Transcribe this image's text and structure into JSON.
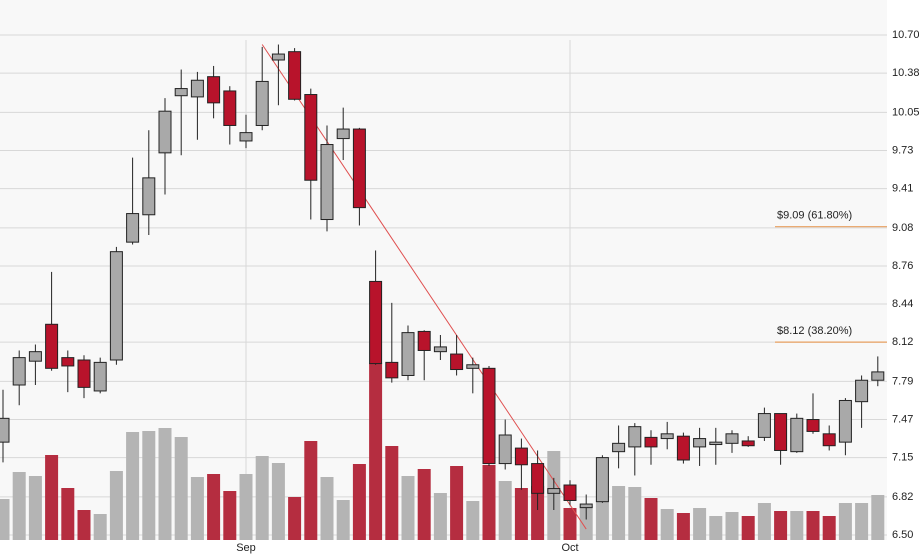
{
  "chart_data": {
    "type": "candlestick",
    "categories": [
      null,
      null,
      null,
      null,
      null,
      null,
      null,
      null,
      null,
      null,
      null,
      null,
      null,
      null,
      null,
      "Sep",
      null,
      null,
      null,
      null,
      null,
      null,
      null,
      null,
      null,
      null,
      null,
      null,
      null,
      null,
      null,
      null,
      null,
      null,
      null,
      "Oct",
      null,
      null,
      null,
      null,
      null,
      null,
      null,
      null,
      null,
      null,
      null,
      null,
      null,
      null,
      null,
      null,
      null,
      null,
      null
    ],
    "open": [
      7.28,
      7.76,
      7.96,
      8.27,
      7.99,
      7.97,
      7.71,
      7.97,
      8.96,
      9.19,
      9.71,
      10.19,
      10.18,
      10.35,
      10.23,
      9.81,
      9.94,
      10.49,
      10.56,
      10.2,
      9.15,
      9.83,
      9.91,
      8.63,
      7.95,
      7.84,
      8.21,
      8.04,
      8.02,
      7.9,
      7.9,
      7.1,
      7.23,
      7.1,
      6.85,
      6.92,
      6.73,
      6.78,
      7.2,
      7.24,
      7.32,
      7.31,
      7.33,
      7.24,
      7.26,
      7.27,
      7.29,
      7.32,
      7.52,
      7.2,
      7.47,
      7.35,
      7.28,
      7.62,
      7.8
    ],
    "high": [
      7.72,
      8.05,
      8.1,
      8.71,
      8.05,
      8.01,
      7.99,
      8.92,
      9.67,
      9.9,
      10.17,
      10.41,
      10.39,
      10.44,
      10.27,
      10.03,
      10.6,
      10.62,
      10.59,
      10.25,
      9.94,
      10.09,
      9.92,
      8.89,
      8.45,
      8.26,
      8.22,
      8.18,
      8.18,
      7.99,
      7.92,
      7.47,
      7.31,
      7.21,
      6.98,
      6.96,
      6.84,
      7.17,
      7.42,
      7.44,
      7.38,
      7.45,
      7.36,
      7.4,
      7.4,
      7.38,
      7.33,
      7.57,
      7.52,
      7.52,
      7.69,
      7.42,
      7.65,
      7.84,
      8.0
    ],
    "low": [
      7.11,
      7.59,
      7.76,
      7.88,
      7.7,
      7.65,
      7.69,
      7.93,
      8.94,
      9.02,
      9.36,
      9.69,
      9.82,
      10.0,
      9.78,
      9.75,
      9.9,
      10.11,
      10.15,
      9.15,
      9.05,
      9.65,
      9.1,
      7.93,
      7.78,
      7.8,
      7.8,
      7.97,
      7.84,
      7.69,
      7.08,
      7.05,
      6.88,
      6.71,
      6.71,
      6.75,
      6.63,
      6.77,
      7.06,
      7.0,
      7.09,
      7.22,
      7.1,
      7.08,
      7.09,
      7.19,
      7.24,
      7.29,
      7.09,
      7.19,
      7.35,
      7.21,
      7.17,
      7.4,
      7.75
    ],
    "close": [
      7.48,
      7.99,
      8.04,
      7.9,
      7.92,
      7.74,
      7.95,
      8.88,
      9.2,
      9.5,
      10.06,
      10.25,
      10.32,
      10.13,
      9.94,
      9.88,
      10.31,
      10.54,
      10.16,
      9.48,
      9.78,
      9.91,
      9.25,
      7.94,
      7.82,
      8.2,
      8.05,
      8.08,
      7.89,
      7.93,
      7.1,
      7.34,
      7.09,
      6.85,
      6.89,
      6.79,
      6.76,
      7.15,
      7.27,
      7.41,
      7.24,
      7.35,
      7.13,
      7.31,
      7.28,
      7.35,
      7.25,
      7.52,
      7.21,
      7.48,
      7.37,
      7.25,
      7.63,
      7.8,
      7.87
    ],
    "volume": [
      41,
      68,
      64,
      85,
      52,
      30,
      26,
      69,
      108,
      109,
      112,
      103,
      63,
      66,
      49,
      66,
      84,
      77,
      43,
      99,
      63,
      40,
      76,
      177,
      94,
      64,
      71,
      47,
      74,
      39,
      75,
      59,
      52,
      54,
      89,
      32,
      34,
      49,
      54,
      53,
      42,
      31,
      27,
      32,
      24,
      28,
      24,
      37,
      29,
      29,
      29,
      24,
      37,
      37,
      45
    ],
    "vlim": [
      0,
      505
    ],
    "ylim": [
      6.5,
      10.7
    ],
    "yticks": [
      {
        "value": 10.7,
        "label": "10.70"
      },
      10.38,
      10.05,
      9.73,
      9.41,
      9.08,
      8.76,
      8.44,
      8.12,
      7.79,
      7.47,
      7.15,
      6.82,
      {
        "value": 6.5,
        "label": "6.50"
      }
    ],
    "grid": true,
    "up_color": "#a9a9a9",
    "down_color": "#b8132b",
    "volume_up_color": "#b4b4b4",
    "volume_down_color": "#b52d40",
    "levels": [
      {
        "value": 9.09,
        "label": "$9.09 (61.80%)",
        "color": "#e8a060"
      },
      {
        "value": 8.12,
        "label": "$8.12 (38.20%)",
        "color": "#e8a060"
      }
    ],
    "trendline": {
      "from": [
        16,
        10.62
      ],
      "to": [
        36,
        6.55
      ],
      "color": "#e05050"
    }
  }
}
